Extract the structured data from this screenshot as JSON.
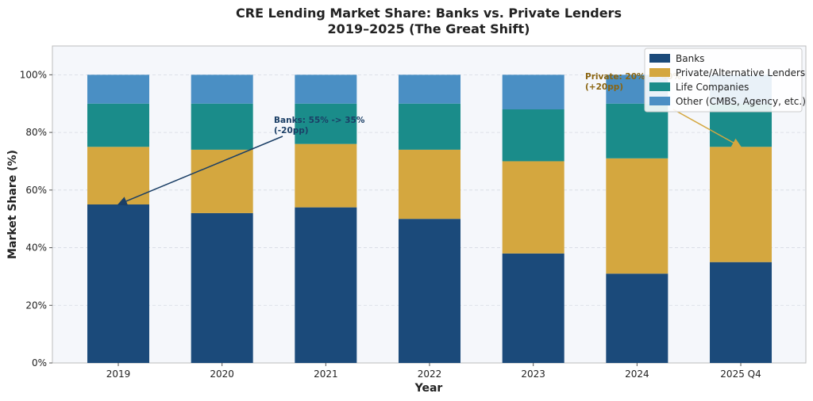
{
  "chart_data": {
    "type": "bar",
    "stacked": true,
    "title": "CRE Lending Market Share: Banks vs. Private Lenders",
    "subtitle": "2019–2025 (The Great Shift)",
    "xlabel": "Year",
    "ylabel": "Market Share (%)",
    "ylim": [
      0,
      110
    ],
    "yticks": [
      0,
      20,
      40,
      60,
      80,
      100
    ],
    "ytick_labels": [
      "0%",
      "20%",
      "40%",
      "60%",
      "80%",
      "100%"
    ],
    "grid": true,
    "legend_position": "top-right",
    "categories": [
      "2019",
      "2020",
      "2021",
      "2022",
      "2023",
      "2024",
      "2025 Q4"
    ],
    "series": [
      {
        "name": "Banks",
        "color": "#1b4a7a",
        "values": [
          55,
          52,
          54,
          50,
          38,
          31,
          35
        ]
      },
      {
        "name": "Private/Alternative Lenders",
        "color": "#d4a73f",
        "values": [
          20,
          22,
          22,
          24,
          32,
          40,
          40
        ]
      },
      {
        "name": "Life Companies",
        "color": "#1a8c8a",
        "values": [
          15,
          16,
          14,
          16,
          18,
          19,
          15
        ]
      },
      {
        "name": "Other (CMBS, Agency, etc.)",
        "color": "#4a8fc4",
        "values": [
          10,
          10,
          10,
          10,
          12,
          10,
          10
        ]
      }
    ],
    "annotations": [
      {
        "line1": "Banks: 55% -> 35%",
        "line2": "(-20pp)",
        "color": "#1b3f66",
        "target_category": "2019",
        "target_value": 55
      },
      {
        "line1": "Private: 20% -> 40%",
        "line2": "(+20pp)",
        "color": "#8a6410",
        "target_category": "2025 Q4",
        "target_value": 75
      }
    ]
  }
}
